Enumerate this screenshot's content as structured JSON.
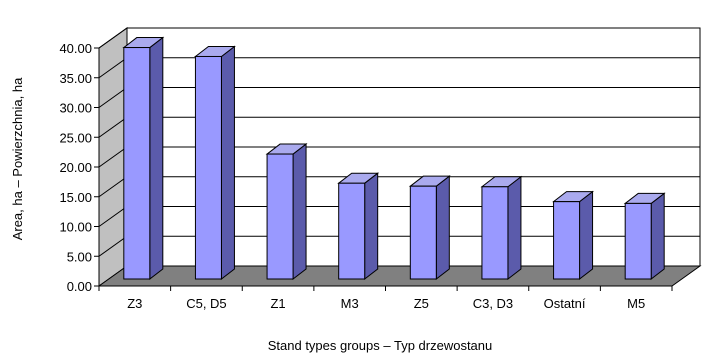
{
  "chart_data": {
    "type": "bar",
    "title": "",
    "xlabel": "Stand types groups – Typ drzewostanu",
    "ylabel": "Area, ha – Powierzchnia, ha",
    "categories": [
      "Z3",
      "C5, D5",
      "Z1",
      "M3",
      "Z5",
      "C3, D3",
      "Ostatní",
      "M5"
    ],
    "values": [
      38.9,
      37.4,
      21.0,
      16.1,
      15.6,
      15.5,
      13.0,
      12.7
    ],
    "ylim": [
      0,
      40
    ],
    "y_ticks": [
      "0.00",
      "5.00",
      "10.00",
      "15.00",
      "20.00",
      "25.00",
      "30.00",
      "35.00",
      "40.00"
    ],
    "grid": true,
    "legend": "none",
    "style": "3d-columns",
    "colors": {
      "bar_front": "#9999ff",
      "bar_top": "#aaaaee",
      "bar_side": "#5b5bab",
      "floor": "#808080",
      "back_wall": "#ffffff",
      "left_wall": "#c0c0c0",
      "gridline": "#000000"
    }
  }
}
